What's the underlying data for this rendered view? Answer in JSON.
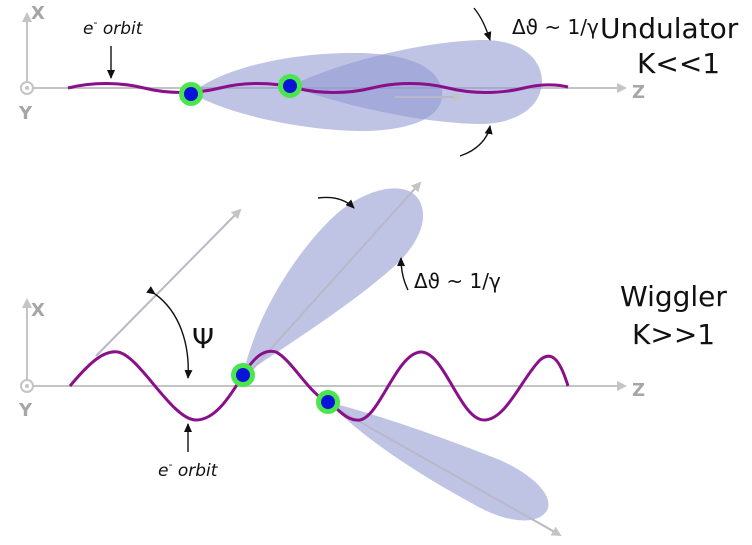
{
  "undulator": {
    "title_line1": "Undulator",
    "title_line2": "K<<1",
    "orbit_label_prefix": "e",
    "orbit_label_sup": "-",
    "orbit_label_suffix": " orbit",
    "angle_label": "Δϑ ~ 1/γ",
    "axis_x": "X",
    "axis_y": "Y",
    "axis_z": "Z"
  },
  "wiggler": {
    "title_line1": "Wiggler",
    "title_line2": "K>>1",
    "orbit_label_prefix": "e",
    "orbit_label_sup": "-",
    "orbit_label_suffix": " orbit",
    "angle_label": "Δϑ ~ 1/γ",
    "psi_label": "Ψ",
    "axis_x": "X",
    "axis_y": "Y",
    "axis_z": "Z"
  },
  "colors": {
    "orbit": "#8a0f8a",
    "lobe": "#9099d2",
    "electron_core": "#0a14d8",
    "electron_ring": "#4be64b",
    "axis": "#c4c4c4"
  }
}
